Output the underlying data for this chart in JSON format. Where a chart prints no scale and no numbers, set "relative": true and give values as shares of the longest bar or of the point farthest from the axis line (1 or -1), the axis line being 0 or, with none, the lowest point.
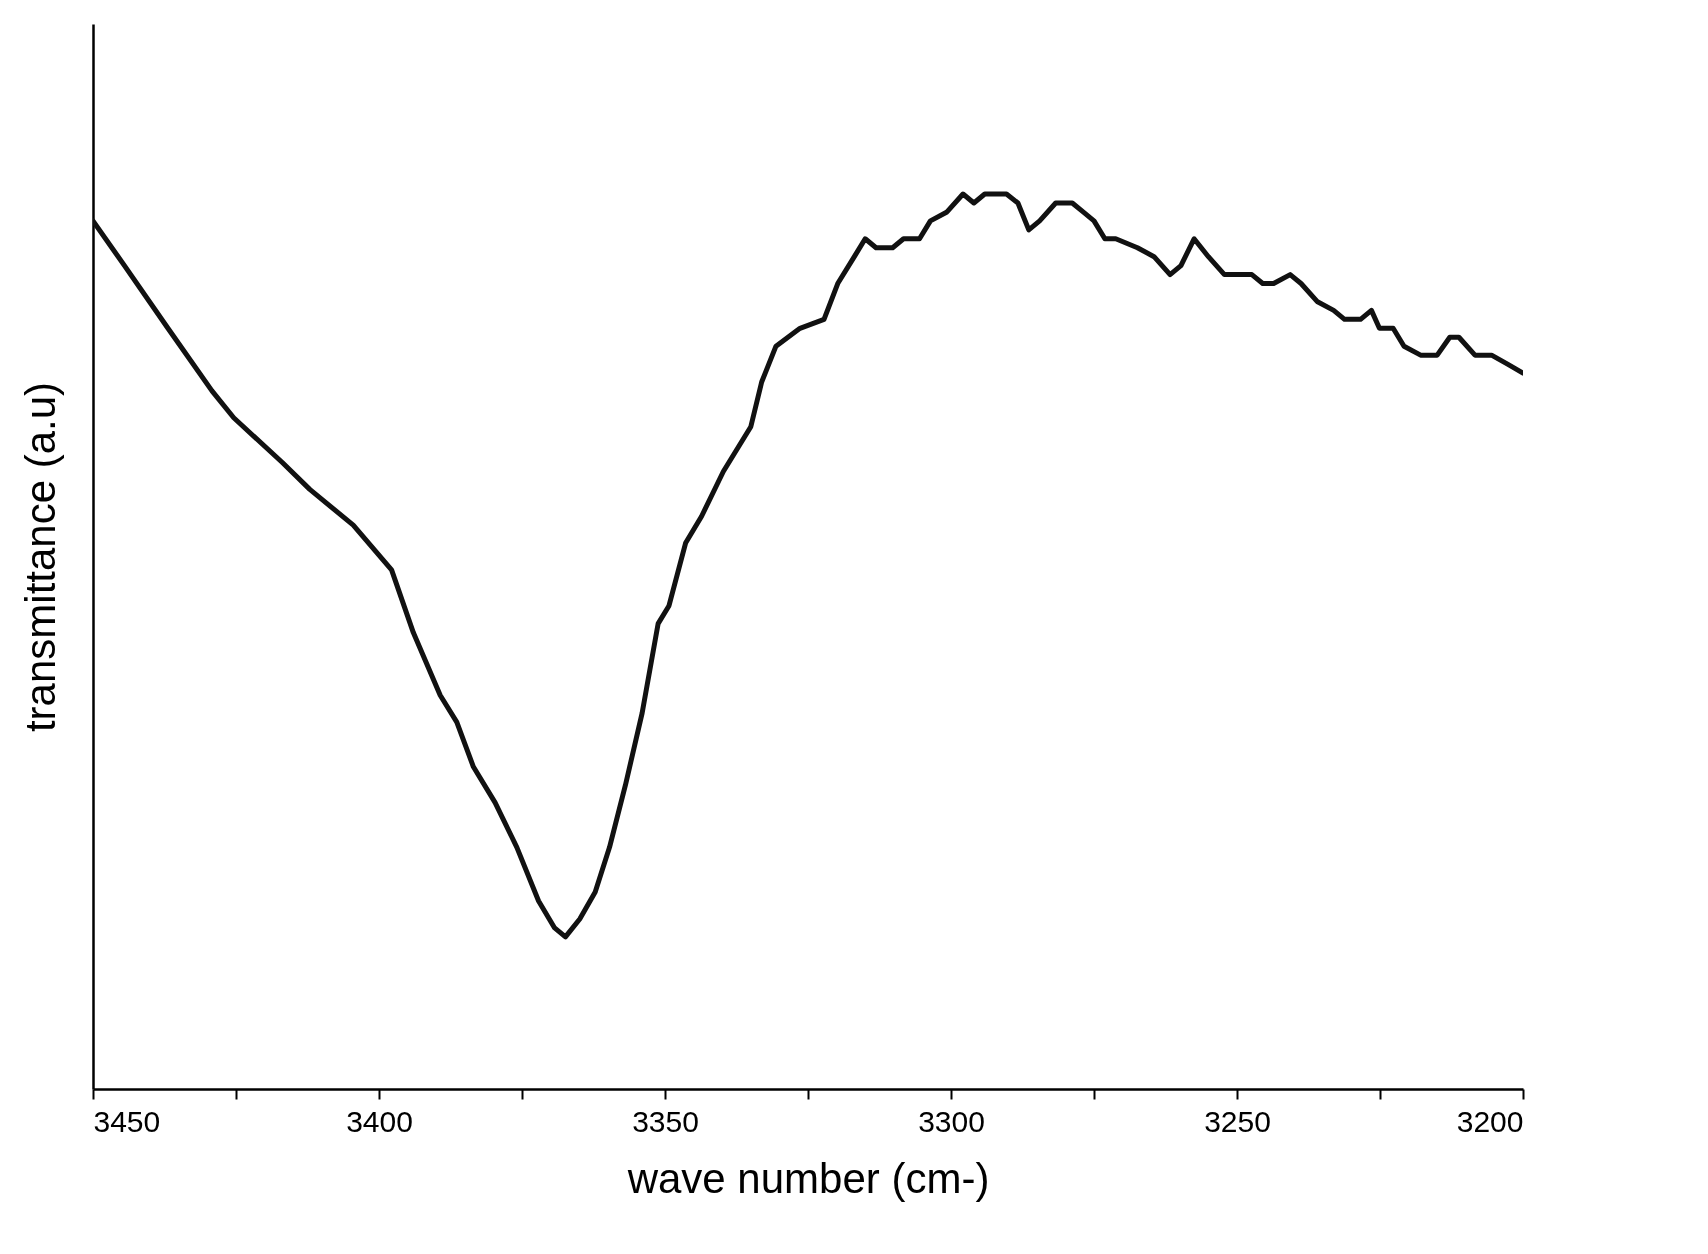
{
  "chart_data": {
    "type": "line",
    "xlabel": "wave number (cm-)",
    "ylabel": "transmittance (a.u)",
    "relative": true,
    "grid": false,
    "legend": false,
    "marker": "none",
    "line_style": "solid",
    "tick_labels": "x",
    "xlim": [
      3450,
      3200
    ],
    "xticks": [
      3450,
      {
        "value": 3425,
        "label": null
      },
      3400,
      {
        "value": 3375,
        "label": null
      },
      3350,
      {
        "value": 3325,
        "label": null
      },
      3300,
      {
        "value": 3275,
        "label": null
      },
      3250,
      {
        "value": 3225,
        "label": null
      },
      3200
    ],
    "x": [
      3450,
      3444.5,
      3436.9,
      3429.2,
      3425.4,
      3416.9,
      3412.1,
      3404.5,
      3397.8,
      3394.0,
      3389.3,
      3386.4,
      3383.5,
      3379.7,
      3375.9,
      3372.1,
      3369.3,
      3367.4,
      3364.9,
      3362.2,
      3359.7,
      3356.9,
      3354.0,
      3351.2,
      3349.3,
      3346.4,
      3343.6,
      3339.8,
      3335.0,
      3333.1,
      3330.6,
      3326.4,
      3322.2,
      3319.8,
      3316.9,
      3315.0,
      3313.1,
      3310.2,
      3308.3,
      3305.5,
      3303.6,
      3300.7,
      3297.9,
      3296.0,
      3294.1,
      3290.3,
      3288.3,
      3286.4,
      3284.5,
      3281.7,
      3278.8,
      3276.9,
      3275.0,
      3273.1,
      3271.2,
      3267.4,
      3264.5,
      3261.7,
      3259.8,
      3257.5,
      3255.0,
      3252.2,
      3249.3,
      3247.4,
      3245.5,
      3243.6,
      3240.7,
      3238.8,
      3236.0,
      3233.1,
      3231.2,
      3228.4,
      3226.5,
      3225.1,
      3222.7,
      3220.8,
      3217.9,
      3215.0,
      3212.8,
      3211.2,
      3208.4,
      3205.5,
      3202.7,
      3200
    ],
    "series": [
      {
        "color": "#111111",
        "values": [
          0.97,
          0.92,
          0.85,
          0.78,
          0.75,
          0.7,
          0.67,
          0.63,
          0.58,
          0.51,
          0.44,
          0.41,
          0.36,
          0.32,
          0.27,
          0.21,
          0.18,
          0.17,
          0.19,
          0.22,
          0.27,
          0.34,
          0.42,
          0.52,
          0.54,
          0.61,
          0.64,
          0.69,
          0.74,
          0.79,
          0.83,
          0.85,
          0.86,
          0.9,
          0.93,
          0.95,
          0.94,
          0.94,
          0.95,
          0.95,
          0.97,
          0.98,
          1,
          0.99,
          1,
          1,
          0.99,
          0.96,
          0.97,
          0.99,
          0.99,
          0.98,
          0.97,
          0.95,
          0.95,
          0.94,
          0.93,
          0.91,
          0.92,
          0.95,
          0.93,
          0.91,
          0.91,
          0.91,
          0.9,
          0.9,
          0.91,
          0.9,
          0.88,
          0.87,
          0.86,
          0.86,
          0.87,
          0.85,
          0.85,
          0.83,
          0.82,
          0.82,
          0.84,
          0.84,
          0.82,
          0.82,
          0.81,
          0.8
        ]
      }
    ]
  }
}
